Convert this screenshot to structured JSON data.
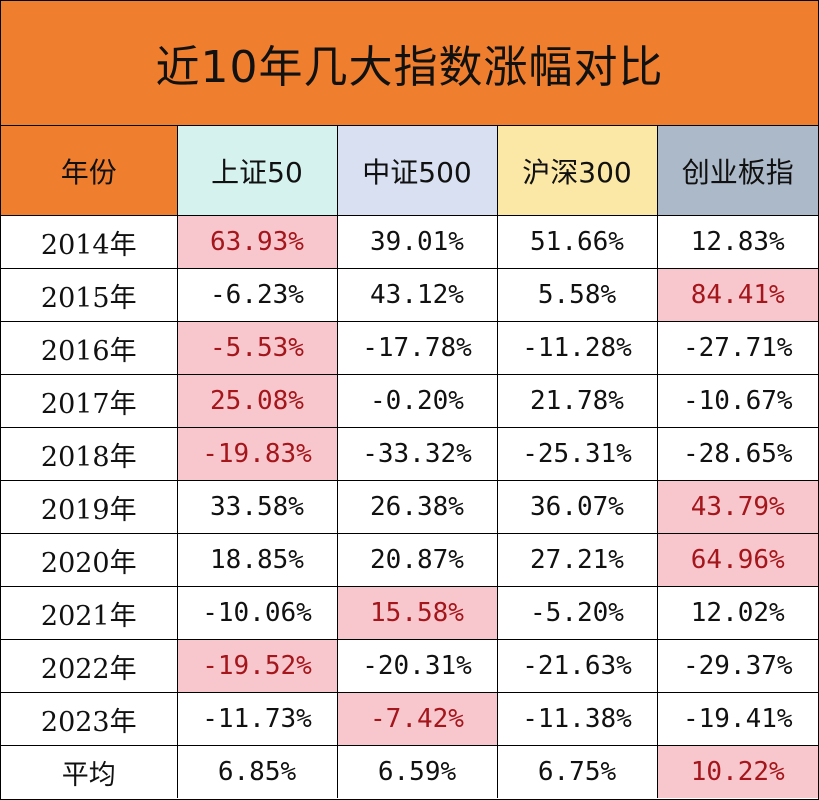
{
  "title": "近10年几大指数涨幅对比",
  "colors": {
    "title_bg": "#ef7f2f",
    "highlight_bg": "#f8c7cd",
    "highlight_text": "#a3161b"
  },
  "headers": [
    {
      "label": "年份",
      "bg": "#ef7f2f"
    },
    {
      "label": "上证50",
      "bg": "#d6f2ef"
    },
    {
      "label": "中证500",
      "bg": "#d8e0f2"
    },
    {
      "label": "沪深300",
      "bg": "#fbe8a6"
    },
    {
      "label": "创业板指",
      "bg": "#acb9c9"
    }
  ],
  "rows": [
    {
      "year": "2014年",
      "values": [
        "63.93%",
        "39.01%",
        "51.66%",
        "12.83%"
      ],
      "highlight": [
        true,
        false,
        false,
        false
      ]
    },
    {
      "year": "2015年",
      "values": [
        "-6.23%",
        "43.12%",
        "5.58%",
        "84.41%"
      ],
      "highlight": [
        false,
        false,
        false,
        true
      ]
    },
    {
      "year": "2016年",
      "values": [
        "-5.53%",
        "-17.78%",
        "-11.28%",
        "-27.71%"
      ],
      "highlight": [
        true,
        false,
        false,
        false
      ]
    },
    {
      "year": "2017年",
      "values": [
        "25.08%",
        "-0.20%",
        "21.78%",
        "-10.67%"
      ],
      "highlight": [
        true,
        false,
        false,
        false
      ]
    },
    {
      "year": "2018年",
      "values": [
        "-19.83%",
        "-33.32%",
        "-25.31%",
        "-28.65%"
      ],
      "highlight": [
        true,
        false,
        false,
        false
      ]
    },
    {
      "year": "2019年",
      "values": [
        "33.58%",
        "26.38%",
        "36.07%",
        "43.79%"
      ],
      "highlight": [
        false,
        false,
        false,
        true
      ]
    },
    {
      "year": "2020年",
      "values": [
        "18.85%",
        "20.87%",
        "27.21%",
        "64.96%"
      ],
      "highlight": [
        false,
        false,
        false,
        true
      ]
    },
    {
      "year": "2021年",
      "values": [
        "-10.06%",
        "15.58%",
        "-5.20%",
        "12.02%"
      ],
      "highlight": [
        false,
        true,
        false,
        false
      ]
    },
    {
      "year": "2022年",
      "values": [
        "-19.52%",
        "-20.31%",
        "-21.63%",
        "-29.37%"
      ],
      "highlight": [
        true,
        false,
        false,
        false
      ]
    },
    {
      "year": "2023年",
      "values": [
        "-11.73%",
        "-7.42%",
        "-11.38%",
        "-19.41%"
      ],
      "highlight": [
        false,
        true,
        false,
        false
      ]
    },
    {
      "year": "平均",
      "values": [
        "6.85%",
        "6.59%",
        "6.75%",
        "10.22%"
      ],
      "highlight": [
        false,
        false,
        false,
        true
      ]
    }
  ]
}
